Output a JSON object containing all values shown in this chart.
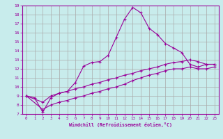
{
  "xlabel": "Windchill (Refroidissement éolien,°C)",
  "bg_color": "#c8ecec",
  "line_color": "#990099",
  "grid_color": "#aaaaaa",
  "xlim": [
    -0.5,
    23.5
  ],
  "ylim": [
    7,
    19
  ],
  "xticks": [
    0,
    1,
    2,
    3,
    4,
    5,
    6,
    7,
    8,
    9,
    10,
    11,
    12,
    13,
    14,
    15,
    16,
    17,
    18,
    19,
    20,
    21,
    22,
    23
  ],
  "yticks": [
    7,
    8,
    9,
    10,
    11,
    12,
    13,
    14,
    15,
    16,
    17,
    18,
    19
  ],
  "line1_x": [
    0,
    1,
    2,
    3,
    4,
    5,
    6,
    7,
    8,
    9,
    10,
    11,
    12,
    13,
    14,
    15,
    16,
    17,
    18,
    19,
    20,
    21,
    22,
    23
  ],
  "line1_y": [
    9.0,
    8.8,
    7.2,
    8.8,
    9.3,
    9.5,
    10.5,
    12.3,
    12.7,
    12.8,
    13.5,
    15.5,
    17.5,
    18.8,
    18.2,
    16.5,
    15.8,
    14.8,
    14.3,
    13.8,
    12.5,
    12.2,
    12.5,
    12.5
  ],
  "line2_x": [
    0,
    2,
    3,
    4,
    5,
    6,
    7,
    8,
    9,
    10,
    11,
    12,
    13,
    14,
    15,
    16,
    17,
    18,
    19,
    20,
    21,
    22,
    23
  ],
  "line2_y": [
    9.0,
    8.3,
    9.0,
    9.3,
    9.5,
    9.8,
    10.0,
    10.3,
    10.5,
    10.8,
    11.0,
    11.3,
    11.5,
    11.8,
    12.0,
    12.2,
    12.5,
    12.7,
    12.8,
    13.0,
    12.8,
    12.5,
    12.5
  ],
  "line3_x": [
    0,
    2,
    3,
    4,
    5,
    6,
    7,
    8,
    9,
    10,
    11,
    12,
    13,
    14,
    15,
    16,
    17,
    18,
    19,
    20,
    21,
    22,
    23
  ],
  "line3_y": [
    9.0,
    7.5,
    8.0,
    8.3,
    8.5,
    8.8,
    9.0,
    9.3,
    9.5,
    9.8,
    10.0,
    10.3,
    10.7,
    11.0,
    11.3,
    11.5,
    11.8,
    12.0,
    12.0,
    12.2,
    12.0,
    12.0,
    12.2
  ]
}
